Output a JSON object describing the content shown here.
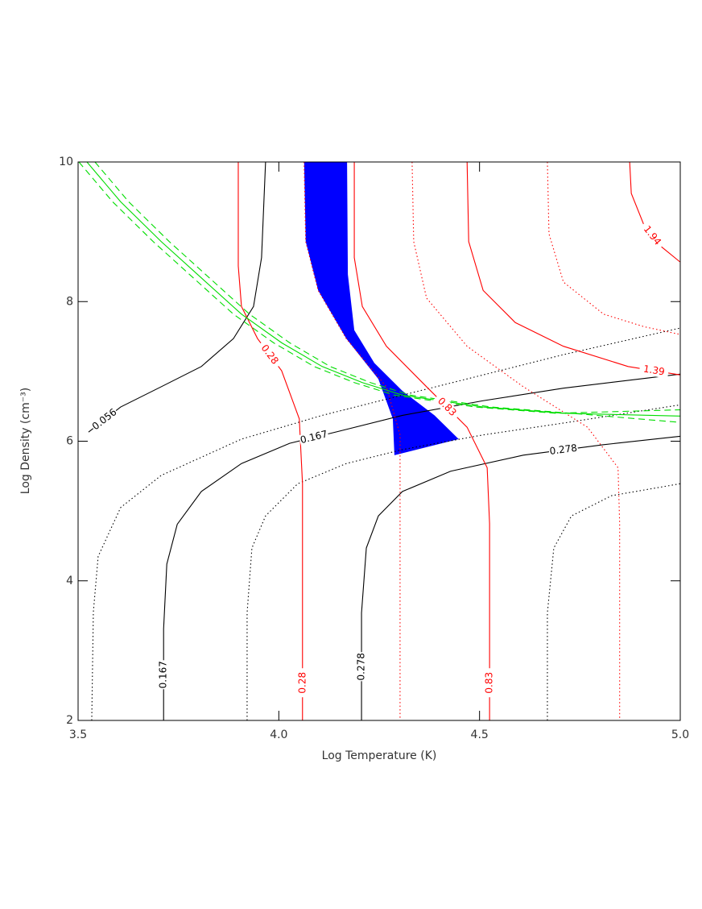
{
  "chart_data": {
    "type": "contour",
    "xlabel": "Log Temperature (K)",
    "ylabel": "Log Density (cm⁻³)",
    "xlim": [
      3.5,
      5.0
    ],
    "ylim": [
      2,
      10
    ],
    "xticks": [
      3.5,
      {
        "value": 4.0,
        "label": "4.0"
      },
      4.5,
      {
        "value": 5.0,
        "label": "5.0"
      }
    ],
    "yticks": [
      2,
      4,
      6,
      8,
      10
    ],
    "band": {
      "color": "#0000ff",
      "x": [
        4.063,
        4.067,
        4.098,
        4.168,
        4.248,
        4.284,
        4.288,
        4.448,
        4.388,
        4.308,
        4.238,
        4.188,
        4.172,
        4.17
      ],
      "y": [
        10.0,
        8.86,
        8.16,
        7.47,
        6.89,
        6.32,
        5.8,
        6.03,
        6.37,
        6.72,
        7.12,
        7.59,
        8.39,
        10.0
      ]
    },
    "series": [
      {
        "level": 0.056,
        "color": "#000000",
        "style": "solid",
        "x": [
          3.526,
          3.606,
          3.707,
          3.807,
          3.887,
          3.937,
          3.957,
          3.967
        ],
        "y": [
          6.13,
          6.49,
          6.78,
          7.07,
          7.47,
          7.93,
          8.63,
          10.0
        ]
      },
      {
        "level": 0.167,
        "color": "#000000",
        "style": "solid",
        "x": [
          3.713,
          3.713,
          3.721,
          3.747,
          3.807,
          3.907,
          4.027,
          4.148,
          4.308,
          4.509,
          4.709,
          4.999
        ],
        "y": [
          2.0,
          3.31,
          4.24,
          4.81,
          5.28,
          5.68,
          5.97,
          6.14,
          6.37,
          6.58,
          6.76,
          6.96
        ]
      },
      {
        "level": 0.278,
        "color": "#000000",
        "style": "solid",
        "x": [
          4.206,
          4.206,
          4.218,
          4.248,
          4.308,
          4.428,
          4.609,
          4.809,
          4.999
        ],
        "y": [
          2.0,
          3.54,
          4.47,
          4.93,
          5.28,
          5.57,
          5.8,
          5.95,
          6.07
        ]
      },
      {
        "color": "#000000",
        "style": "dotted",
        "x": [
          3.534,
          3.538,
          3.55,
          3.606,
          3.707,
          3.907,
          4.108,
          4.308,
          4.509,
          4.709,
          4.999
        ],
        "y": [
          2.0,
          3.55,
          4.35,
          5.05,
          5.51,
          6.03,
          6.37,
          6.66,
          6.95,
          7.24,
          7.62
        ]
      },
      {
        "color": "#000000",
        "style": "dotted",
        "x": [
          3.921,
          3.921,
          3.933,
          3.967,
          4.047,
          4.168,
          4.308,
          4.509,
          4.709,
          4.999
        ],
        "y": [
          2.0,
          3.54,
          4.47,
          4.93,
          5.39,
          5.68,
          5.88,
          6.09,
          6.26,
          6.52
        ]
      },
      {
        "color": "#000000",
        "style": "dotted",
        "x": [
          4.669,
          4.669,
          4.685,
          4.729,
          4.829,
          4.999
        ],
        "y": [
          2.0,
          3.54,
          4.47,
          4.93,
          5.22,
          5.39
        ]
      },
      {
        "level": 0.28,
        "color": "#ff0000",
        "style": "solid",
        "x": [
          3.899,
          3.899,
          3.907,
          3.947,
          4.007,
          4.051,
          4.059,
          4.059,
          4.059
        ],
        "y": [
          10.0,
          8.51,
          7.93,
          7.47,
          7.01,
          6.32,
          5.39,
          3.08,
          2.0
        ]
      },
      {
        "level": 0.83,
        "color": "#ff0000",
        "style": "solid",
        "x": [
          4.188,
          4.188,
          4.208,
          4.268,
          4.368,
          4.469,
          4.519,
          4.525,
          4.525,
          4.525
        ],
        "y": [
          10.0,
          8.63,
          7.93,
          7.36,
          6.78,
          6.2,
          5.62,
          4.82,
          3.08,
          2.0
        ]
      },
      {
        "level": 1.39,
        "color": "#ff0000",
        "style": "solid",
        "x": [
          4.469,
          4.473,
          4.509,
          4.589,
          4.709,
          4.87,
          4.999
        ],
        "y": [
          10.0,
          8.86,
          8.16,
          7.7,
          7.36,
          7.07,
          6.95
        ]
      },
      {
        "level": 1.94,
        "color": "#ff0000",
        "style": "solid",
        "x": [
          4.874,
          4.878,
          4.91,
          4.95,
          4.999
        ],
        "y": [
          10.0,
          9.55,
          9.09,
          8.8,
          8.57
        ]
      },
      {
        "color": "#ff0000",
        "style": "dotted",
        "x": [
          4.063,
          4.067,
          4.098,
          4.168,
          4.268,
          4.302,
          4.302
        ],
        "y": [
          10.0,
          8.86,
          8.16,
          7.47,
          6.78,
          6.09,
          2.0
        ]
      },
      {
        "color": "#ff0000",
        "style": "dotted",
        "x": [
          4.332,
          4.336,
          4.368,
          4.469,
          4.609,
          4.769,
          4.845,
          4.849,
          4.849
        ],
        "y": [
          10.0,
          8.86,
          8.05,
          7.36,
          6.78,
          6.2,
          5.62,
          4.82,
          2.0
        ]
      },
      {
        "color": "#ff0000",
        "style": "dotted",
        "x": [
          4.669,
          4.673,
          4.709,
          4.809,
          4.91,
          4.999
        ],
        "y": [
          10.0,
          8.97,
          8.28,
          7.82,
          7.64,
          7.53
        ]
      },
      {
        "color": "#00dd00",
        "style": "solid",
        "x": [
          3.522,
          3.606,
          3.707,
          3.807,
          3.907,
          4.007,
          4.108,
          4.208,
          4.308,
          4.509,
          4.709,
          4.999
        ],
        "y": [
          10.0,
          9.43,
          8.86,
          8.34,
          7.82,
          7.41,
          7.07,
          6.84,
          6.66,
          6.49,
          6.4,
          6.36
        ]
      },
      {
        "color": "#00dd00",
        "style": "dashed",
        "x": [
          3.502,
          3.586,
          3.687,
          3.787,
          3.887,
          3.987,
          4.088,
          4.188,
          4.288,
          4.489,
          4.689,
          4.999
        ],
        "y": [
          10.0,
          9.43,
          8.86,
          8.34,
          7.82,
          7.41,
          7.07,
          6.84,
          6.66,
          6.49,
          6.4,
          6.45
        ]
      },
      {
        "color": "#00dd00",
        "style": "dashed",
        "x": [
          3.542,
          3.626,
          3.727,
          3.827,
          3.927,
          4.027,
          4.128,
          4.228,
          4.328,
          4.529,
          4.729,
          4.999
        ],
        "y": [
          10.0,
          9.43,
          8.86,
          8.34,
          7.82,
          7.41,
          7.07,
          6.84,
          6.66,
          6.49,
          6.4,
          6.27
        ]
      }
    ]
  }
}
